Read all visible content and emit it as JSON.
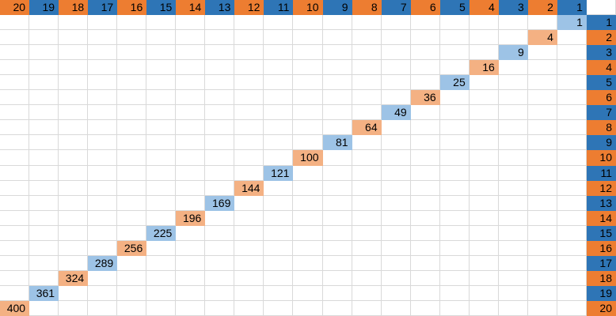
{
  "sheet": {
    "grid": {
      "columns": 21,
      "rows": 21
    },
    "top_header_row": [
      {
        "value": "20",
        "fill": "orange"
      },
      {
        "value": "19",
        "fill": "blue"
      },
      {
        "value": "18",
        "fill": "orange"
      },
      {
        "value": "17",
        "fill": "blue"
      },
      {
        "value": "16",
        "fill": "orange"
      },
      {
        "value": "15",
        "fill": "blue"
      },
      {
        "value": "14",
        "fill": "orange"
      },
      {
        "value": "13",
        "fill": "blue"
      },
      {
        "value": "12",
        "fill": "orange"
      },
      {
        "value": "11",
        "fill": "blue"
      },
      {
        "value": "10",
        "fill": "orange"
      },
      {
        "value": "9",
        "fill": "blue"
      },
      {
        "value": "8",
        "fill": "orange"
      },
      {
        "value": "7",
        "fill": "blue"
      },
      {
        "value": "6",
        "fill": "orange"
      },
      {
        "value": "5",
        "fill": "blue"
      },
      {
        "value": "4",
        "fill": "orange"
      },
      {
        "value": "3",
        "fill": "blue"
      },
      {
        "value": "2",
        "fill": "orange"
      },
      {
        "value": "1",
        "fill": "blue"
      },
      {
        "value": "",
        "fill": "white"
      }
    ],
    "right_label_column": [
      {
        "row": 1,
        "value": "1",
        "fill": "blue"
      },
      {
        "row": 2,
        "value": "2",
        "fill": "orange"
      },
      {
        "row": 3,
        "value": "3",
        "fill": "blue"
      },
      {
        "row": 4,
        "value": "4",
        "fill": "orange"
      },
      {
        "row": 5,
        "value": "5",
        "fill": "blue"
      },
      {
        "row": 6,
        "value": "6",
        "fill": "orange"
      },
      {
        "row": 7,
        "value": "7",
        "fill": "blue"
      },
      {
        "row": 8,
        "value": "8",
        "fill": "orange"
      },
      {
        "row": 9,
        "value": "9",
        "fill": "blue"
      },
      {
        "row": 10,
        "value": "10",
        "fill": "orange"
      },
      {
        "row": 11,
        "value": "11",
        "fill": "blue"
      },
      {
        "row": 12,
        "value": "12",
        "fill": "orange"
      },
      {
        "row": 13,
        "value": "13",
        "fill": "blue"
      },
      {
        "row": 14,
        "value": "14",
        "fill": "orange"
      },
      {
        "row": 15,
        "value": "15",
        "fill": "blue"
      },
      {
        "row": 16,
        "value": "16",
        "fill": "orange"
      },
      {
        "row": 17,
        "value": "17",
        "fill": "blue"
      },
      {
        "row": 18,
        "value": "18",
        "fill": "orange"
      },
      {
        "row": 19,
        "value": "19",
        "fill": "blue"
      },
      {
        "row": 20,
        "value": "20",
        "fill": "orange"
      }
    ],
    "diagonal_square_cells": [
      {
        "row": 1,
        "col": 19,
        "value": "1",
        "fill": "light_blue"
      },
      {
        "row": 2,
        "col": 18,
        "value": "4",
        "fill": "light_orange"
      },
      {
        "row": 3,
        "col": 17,
        "value": "9",
        "fill": "light_blue"
      },
      {
        "row": 4,
        "col": 16,
        "value": "16",
        "fill": "light_orange"
      },
      {
        "row": 5,
        "col": 15,
        "value": "25",
        "fill": "light_blue"
      },
      {
        "row": 6,
        "col": 14,
        "value": "36",
        "fill": "light_orange"
      },
      {
        "row": 7,
        "col": 13,
        "value": "49",
        "fill": "light_blue"
      },
      {
        "row": 8,
        "col": 12,
        "value": "64",
        "fill": "light_orange"
      },
      {
        "row": 9,
        "col": 11,
        "value": "81",
        "fill": "light_blue"
      },
      {
        "row": 10,
        "col": 10,
        "value": "100",
        "fill": "light_orange"
      },
      {
        "row": 11,
        "col": 9,
        "value": "121",
        "fill": "light_blue"
      },
      {
        "row": 12,
        "col": 8,
        "value": "144",
        "fill": "light_orange"
      },
      {
        "row": 13,
        "col": 7,
        "value": "169",
        "fill": "light_blue"
      },
      {
        "row": 14,
        "col": 6,
        "value": "196",
        "fill": "light_orange"
      },
      {
        "row": 15,
        "col": 5,
        "value": "225",
        "fill": "light_blue"
      },
      {
        "row": 16,
        "col": 4,
        "value": "256",
        "fill": "light_orange"
      },
      {
        "row": 17,
        "col": 3,
        "value": "289",
        "fill": "light_blue"
      },
      {
        "row": 18,
        "col": 2,
        "value": "324",
        "fill": "light_orange"
      },
      {
        "row": 19,
        "col": 1,
        "value": "361",
        "fill": "light_blue"
      },
      {
        "row": 20,
        "col": 0,
        "value": "400",
        "fill": "light_orange"
      }
    ]
  },
  "colors": {
    "orange": "#ED7D31",
    "blue": "#2E75B6",
    "light_blue": "#9DC3E6",
    "light_orange": "#F4B183",
    "white": "#FFFFFF",
    "gridline": "#D9D9D9",
    "text": "#000000"
  }
}
